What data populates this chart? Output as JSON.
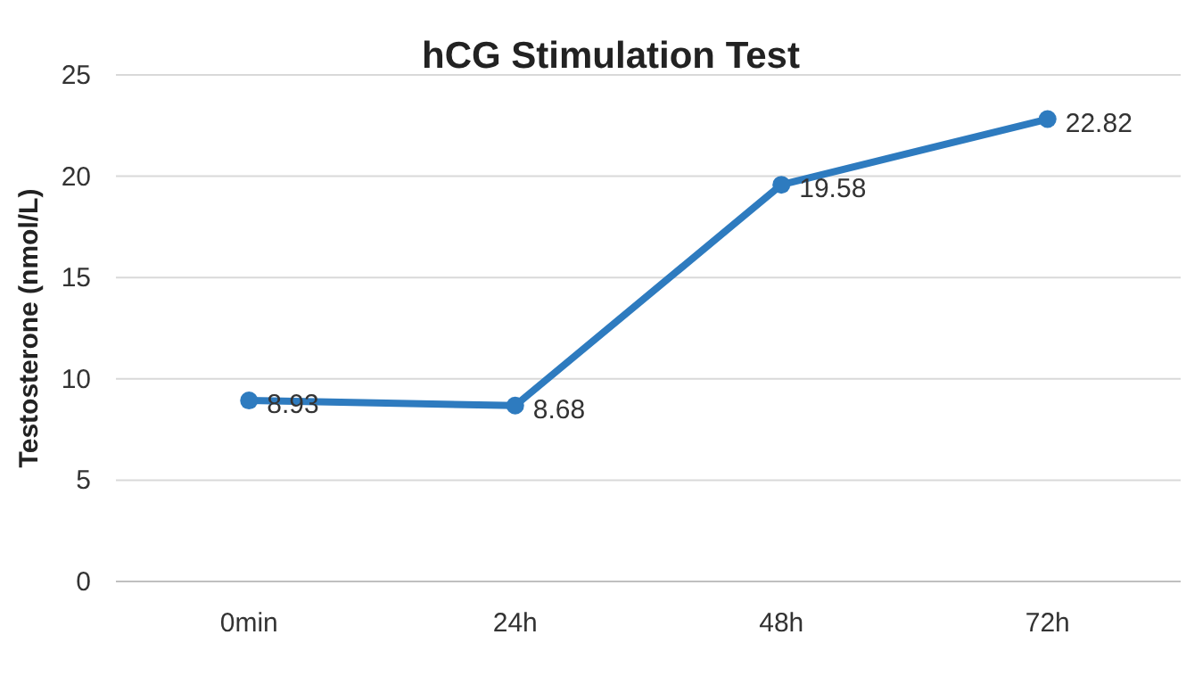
{
  "chart_data": {
    "type": "line",
    "title": "hCG Stimulation Test",
    "ylabel": "Testosterone (nmol/L)",
    "categories": [
      "0min",
      "24h",
      "48h",
      "72h"
    ],
    "series": [
      {
        "color": "#2e7bbf",
        "values": [
          8.93,
          8.68,
          19.58,
          22.82
        ]
      }
    ],
    "ylim": [
      0,
      25
    ],
    "yticks": [
      0,
      5,
      10,
      15,
      20,
      25
    ],
    "grid": "y",
    "marker": "circle",
    "line_style": "solid",
    "data_labels": true
  }
}
